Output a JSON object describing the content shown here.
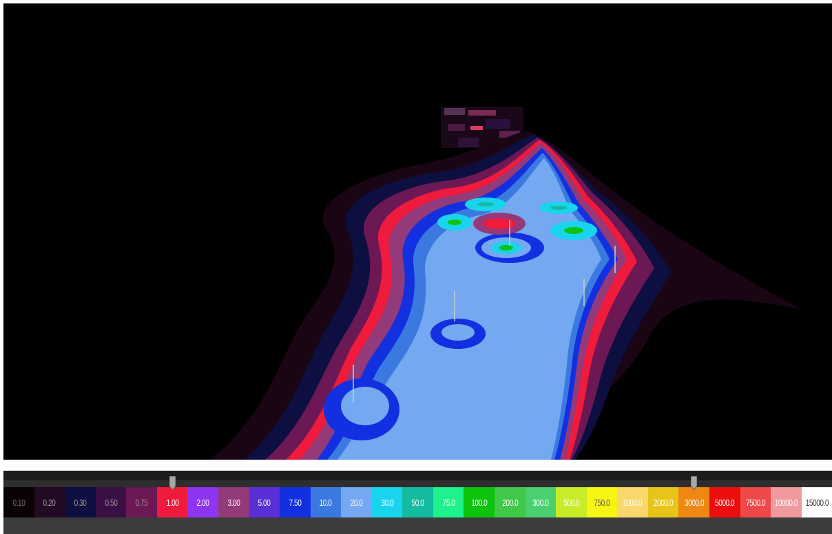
{
  "viewport": {
    "background": "#000000",
    "content": "3d-contour-surface-view"
  },
  "legend": {
    "bins": [
      {
        "label": "0.10",
        "color": "#0a0205",
        "text": "#6e6e6e"
      },
      {
        "label": "0.20",
        "color": "#230a24",
        "text": "#9a9a9a"
      },
      {
        "label": "0.30",
        "color": "#0c0f3f",
        "text": "#9a9a9a"
      },
      {
        "label": "0.50",
        "color": "#3a0f45",
        "text": "#9a9a9a"
      },
      {
        "label": "0.75",
        "color": "#6c1854",
        "text": "#9a9a9a"
      },
      {
        "label": "1.00",
        "color": "#f01a3c",
        "text": "#ffffff"
      },
      {
        "label": "2.00",
        "color": "#8d35f0",
        "text": "#ffffff"
      },
      {
        "label": "3.00",
        "color": "#923a7a",
        "text": "#ffffff"
      },
      {
        "label": "5.00",
        "color": "#5a2fd6",
        "text": "#ffffff"
      },
      {
        "label": "7.50",
        "color": "#1230e0",
        "text": "#ffffff"
      },
      {
        "label": "10.0",
        "color": "#3a7ae0",
        "text": "#ffffff"
      },
      {
        "label": "20.0",
        "color": "#74a8f0",
        "text": "#ffffff"
      },
      {
        "label": "30.0",
        "color": "#1ad4ee",
        "text": "#ffffff"
      },
      {
        "label": "50.0",
        "color": "#14bba0",
        "text": "#ffffff"
      },
      {
        "label": "75.0",
        "color": "#1ef28c",
        "text": "#ffffff"
      },
      {
        "label": "100.0",
        "color": "#0bc40b",
        "text": "#ffffff"
      },
      {
        "label": "200.0",
        "color": "#40c848",
        "text": "#ffffff"
      },
      {
        "label": "300.0",
        "color": "#4ad070",
        "text": "#ffffff"
      },
      {
        "label": "500.0",
        "color": "#c8ec28",
        "text": "#ffffff"
      },
      {
        "label": "750.0",
        "color": "#f8f414",
        "text": "#555555"
      },
      {
        "label": "1000.0",
        "color": "#f8d86a",
        "text": "#ffffff"
      },
      {
        "label": "2000.0",
        "color": "#e8c418",
        "text": "#ffffff"
      },
      {
        "label": "3000.0",
        "color": "#ee8812",
        "text": "#ffffff"
      },
      {
        "label": "5000.0",
        "color": "#ec0d0d",
        "text": "#ffffff"
      },
      {
        "label": "7500.0",
        "color": "#ee4848",
        "text": "#ffffff"
      },
      {
        "label": "10000.0",
        "color": "#f09aa0",
        "text": "#ffffff"
      },
      {
        "label": "15000.0",
        "color": "#ffffff",
        "text": "#333333"
      }
    ],
    "min_handle_value": "1.00",
    "max_handle_value": "3000.0"
  }
}
